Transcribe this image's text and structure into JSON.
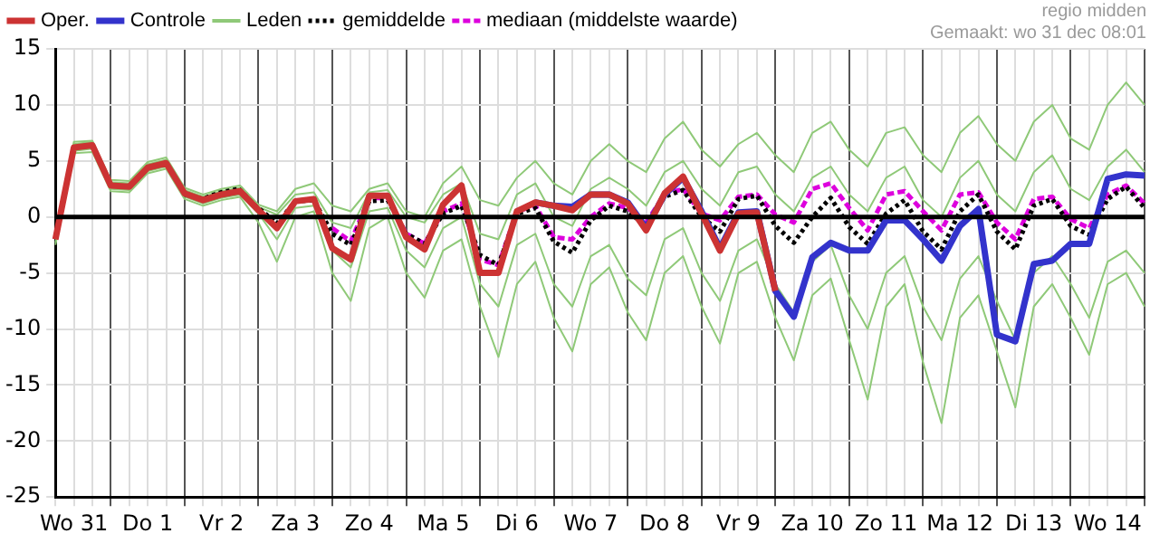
{
  "chart_data": {
    "type": "line",
    "annotations": [
      "regio midden",
      "Gemaakt: wo 31 dec 08:01"
    ],
    "categories": [
      null,
      "Wo 31",
      null,
      null,
      null,
      "Do 1",
      null,
      null,
      null,
      "Vr 2",
      null,
      null,
      null,
      "Za 3",
      null,
      null,
      null,
      "Zo 4",
      null,
      null,
      null,
      "Ma 5",
      null,
      null,
      null,
      "Di 6",
      null,
      null,
      null,
      "Wo 7",
      null,
      null,
      null,
      "Do 8",
      null,
      null,
      null,
      "Vr 9",
      null,
      null,
      null,
      "Za 10",
      null,
      null,
      null,
      "Zo 11",
      null,
      null,
      null,
      "Ma 12",
      null,
      null,
      null,
      "Di 13",
      null,
      null,
      null,
      "Wo 14",
      null,
      null
    ],
    "ylim": [
      -25,
      15
    ],
    "yticks": [
      -25,
      -20,
      -15,
      -10,
      -5,
      0,
      5,
      10,
      15
    ],
    "grid": true,
    "legend": "top",
    "marker": "none",
    "line_style": "solid",
    "ref_lines": [
      {
        "axis": "y",
        "value": 0,
        "color": "#000000"
      }
    ],
    "series": [
      {
        "name": "Oper.",
        "color": "#cc3333",
        "values": [
          -2,
          6.2,
          6.4,
          2.8,
          2.7,
          4.4,
          4.8,
          2.1,
          1.5,
          2.0,
          2.3,
          0.6,
          -1.0,
          1.4,
          1.6,
          -2.8,
          -3.8,
          1.9,
          1.9,
          -1.8,
          -2.9,
          1.1,
          2.8,
          -5,
          -5,
          0.5,
          1.3,
          1.0,
          0.6,
          2.0,
          2.0,
          1.2,
          -1.2,
          2.1,
          3.6,
          0.3,
          -3.0,
          0.3,
          0.4,
          -6.6,
          null,
          null,
          null,
          null,
          null,
          null,
          null,
          null,
          null,
          null,
          null,
          null,
          null,
          null,
          null,
          null,
          null,
          null,
          null,
          null
        ]
      },
      {
        "name": "Controle",
        "color": "#3333cc",
        "values": [
          null,
          null,
          null,
          null,
          null,
          null,
          null,
          null,
          null,
          null,
          null,
          null,
          null,
          null,
          null,
          null,
          null,
          null,
          null,
          null,
          null,
          null,
          null,
          null,
          null,
          null,
          1.3,
          1.0,
          0.9,
          2.0,
          2.0,
          1.3,
          -1.0,
          2.0,
          3.5,
          0.5,
          -2.8,
          0.4,
          0.5,
          -6.6,
          -8.9,
          -3.6,
          -2.3,
          -3.0,
          -3.0,
          -0.3,
          -0.3,
          -2.0,
          -3.9,
          -0.8,
          0.7,
          -10.5,
          -11.1,
          -4.2,
          -3.9,
          -2.4,
          -2.4,
          3.4,
          3.8,
          3.7
        ]
      },
      {
        "name": "Leden",
        "color": "#8fc978",
        "values": [
          -1.5,
          6.7,
          6.8,
          3.3,
          3.2,
          4.9,
          5.3,
          2.6,
          2.0,
          2.5,
          2.8,
          1.1,
          0.5,
          2.5,
          3.0,
          1.0,
          0.5,
          2.5,
          3.0,
          0.5,
          0,
          3.0,
          4.5,
          1.5,
          1.0,
          3.5,
          5.0,
          3.0,
          2.0,
          5.0,
          6.5,
          5.0,
          4.0,
          7.0,
          8.5,
          6.0,
          4.5,
          6.5,
          7.5,
          5.5,
          4.0,
          7.5,
          8.5,
          6.0,
          4.5,
          7.5,
          8.0,
          5.5,
          4.0,
          7.5,
          9.0,
          6.5,
          5.0,
          8.5,
          10.0,
          7.0,
          6.0,
          10.0,
          12.0,
          10.0
        ]
      },
      {
        "name": "gemiddelde",
        "color": "#000000",
        "line_style": "dotted",
        "values": [
          null,
          null,
          null,
          null,
          null,
          null,
          null,
          2.0,
          1.6,
          2.3,
          2.6,
          0.8,
          -0.6,
          1.4,
          1.5,
          -1.5,
          -2.5,
          1.4,
          1.5,
          -1.5,
          -2.4,
          0.3,
          1.0,
          -3.4,
          -4.3,
          0.3,
          0.8,
          -2.2,
          -3.2,
          -0.3,
          1.0,
          0.5,
          -0.8,
          1.8,
          2.4,
          0,
          -1.3,
          1.6,
          1.9,
          -0.8,
          -2.3,
          0,
          1.7,
          -0.9,
          -2.4,
          0.3,
          1.5,
          -1.3,
          -2.9,
          0.5,
          2.0,
          -1.3,
          -2.9,
          1.0,
          1.6,
          -0.8,
          -1.6,
          1.6,
          2.7,
          0.8
        ]
      },
      {
        "name": "mediaan (middelste waarde)",
        "color": "#dd00dd",
        "line_style": "dashed",
        "values": [
          null,
          null,
          null,
          null,
          null,
          null,
          null,
          null,
          null,
          null,
          null,
          null,
          null,
          null,
          null,
          -1.0,
          -2.2,
          1.7,
          1.7,
          -1.5,
          -2.4,
          0.5,
          1.2,
          -3.8,
          -4.3,
          0.5,
          1.0,
          -1.8,
          -2.0,
          0,
          1.2,
          0.8,
          -0.5,
          2.0,
          2.5,
          0.3,
          -0.3,
          1.8,
          2.0,
          0.2,
          -0.5,
          2.5,
          3.0,
          0.8,
          -1.2,
          2.0,
          2.3,
          0.5,
          -1.2,
          2.0,
          2.2,
          -0.5,
          -2.0,
          1.6,
          1.8,
          -0.2,
          -1.0,
          2.0,
          2.8,
          1.2
        ]
      },
      {
        "color": "#8fc978",
        "values": [
          -2.5,
          5.7,
          5.8,
          2.3,
          2.2,
          3.9,
          4.3,
          1.6,
          1.0,
          1.5,
          1.8,
          -0.5,
          -4.0,
          0,
          0.5,
          -5.0,
          -7.5,
          -1.0,
          0,
          -5.0,
          -7.2,
          -3.0,
          -2.0,
          -8.0,
          -12.5,
          -6.0,
          -4.0,
          -9.0,
          -12.0,
          -6.0,
          -4.5,
          -8.5,
          -11.0,
          -5.0,
          -3.5,
          -8.0,
          -11.3,
          -5.0,
          -4.0,
          -9.0,
          -12.8,
          -7.0,
          -5.5,
          -11.0,
          -16.3,
          -8.0,
          -6.0,
          -13.0,
          -18.4,
          -9.0,
          -7.0,
          -12.0,
          -17.0,
          -8.0,
          -6.0,
          -9.0,
          -12.3,
          -6.0,
          -5.0,
          -8.0
        ]
      },
      {
        "color": "#8fc978",
        "values": [
          -1.7,
          6.5,
          6.7,
          3.1,
          3.0,
          4.7,
          5.1,
          2.4,
          1.8,
          2.3,
          2.6,
          0.9,
          0.2,
          2.0,
          2.2,
          -0.5,
          -1.0,
          2.2,
          2.4,
          0,
          -0.5,
          2.0,
          3.0,
          -1.5,
          -2.0,
          2.0,
          3.0,
          0,
          -0.8,
          2.5,
          3.5,
          2.5,
          1.0,
          4.0,
          5.0,
          2.5,
          1.0,
          4.0,
          4.5,
          2.0,
          0.5,
          3.5,
          4.5,
          2.0,
          0.5,
          3.5,
          4.5,
          1.5,
          0,
          3.5,
          5.0,
          2.0,
          0.5,
          4.0,
          5.5,
          2.5,
          1.5,
          4.5,
          6.0,
          4.0
        ]
      },
      {
        "color": "#8fc978",
        "values": [
          -2.3,
          5.9,
          6.1,
          2.5,
          2.4,
          4.1,
          4.5,
          1.8,
          1.2,
          1.7,
          2.0,
          0.3,
          -2.0,
          0.8,
          1.0,
          -3.0,
          -4.5,
          0.5,
          0.8,
          -3.0,
          -4.5,
          -1.0,
          0,
          -6.0,
          -8.0,
          -2.5,
          -1.5,
          -6.0,
          -8.0,
          -3.5,
          -2.5,
          -5.5,
          -7.0,
          -2.0,
          -1.0,
          -5.0,
          -7.5,
          -3.0,
          -2.0,
          -6.0,
          -8.5,
          -4.0,
          -2.5,
          -7.0,
          -10.0,
          -5.0,
          -3.5,
          -8.0,
          -11.0,
          -5.5,
          -3.5,
          -7.5,
          -11.0,
          -5.0,
          -3.5,
          -6.0,
          -9.0,
          -4.0,
          -3.0,
          -5.0
        ]
      }
    ]
  }
}
